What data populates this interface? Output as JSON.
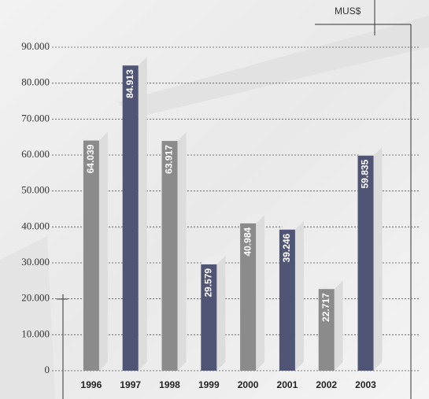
{
  "chart_data": {
    "type": "bar",
    "unit": "MUS$",
    "categories": [
      "1996",
      "1997",
      "1998",
      "1999",
      "2000",
      "2001",
      "2002",
      "2003"
    ],
    "values": [
      64039,
      84913,
      63917,
      29579,
      40984,
      39246,
      22717,
      59835
    ],
    "value_labels": [
      "64.039",
      "84.913",
      "63.917",
      "29.579",
      "40.984",
      "39.246",
      "22.717",
      "59.835"
    ],
    "colors": [
      "#8b8b8b",
      "#505475",
      "#8b8b8b",
      "#505475",
      "#8b8b8b",
      "#505475",
      "#8b8b8b",
      "#505475"
    ],
    "ylim": [
      0,
      90000
    ],
    "yticks": [
      {
        "value": 0,
        "label": "0"
      },
      {
        "value": 10000,
        "label": "10.000"
      },
      {
        "value": 20000,
        "label": "20.000"
      },
      {
        "value": 30000,
        "label": "30.000"
      },
      {
        "value": 40000,
        "label": "40.000"
      },
      {
        "value": 50000,
        "label": "50.000"
      },
      {
        "value": 60000,
        "label": "60.000"
      },
      {
        "value": 70000,
        "label": "70.000"
      },
      {
        "value": 80000,
        "label": "80.000"
      },
      {
        "value": 90000,
        "label": "90.000"
      }
    ],
    "grid": true
  }
}
